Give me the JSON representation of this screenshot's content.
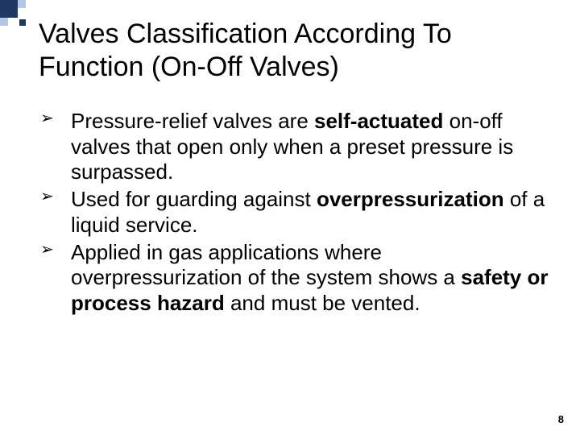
{
  "decorations": {
    "dark": "#203864",
    "light": "#b4c7e7"
  },
  "title": "Valves Classification According To Function (On-Off Valves)",
  "bullets": [
    {
      "segments": [
        {
          "text": "Pressure-relief valves are ",
          "bold": false
        },
        {
          "text": "self-actuated",
          "bold": true
        },
        {
          "text": " on-off valves that open only when a preset pressure is surpassed.",
          "bold": false
        }
      ]
    },
    {
      "segments": [
        {
          "text": "Used for guarding against ",
          "bold": false
        },
        {
          "text": "overpressurization",
          "bold": true
        },
        {
          "text": " of a liquid service.",
          "bold": false
        }
      ]
    },
    {
      "segments": [
        {
          "text": "Applied in gas applications where overpressurization of the system shows a ",
          "bold": false
        },
        {
          "text": "safety or process hazard",
          "bold": true
        },
        {
          "text": " and must be vented.",
          "bold": false
        }
      ]
    }
  ],
  "page_number": "8",
  "typography": {
    "title_fontsize": 34,
    "body_fontsize": 26,
    "page_num_fontsize": 13
  }
}
